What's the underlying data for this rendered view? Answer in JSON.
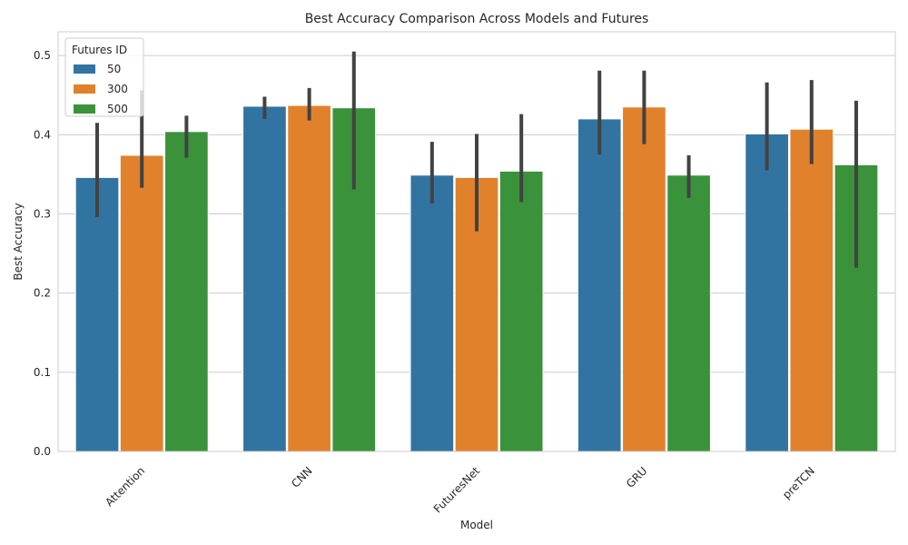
{
  "chart_data": {
    "type": "bar",
    "title": "Best Accuracy Comparison Across Models and Futures",
    "xlabel": "Model",
    "ylabel": "Best Accuracy",
    "ylim": [
      0,
      0.53
    ],
    "yticks": [
      "0.0",
      "0.1",
      "0.2",
      "0.3",
      "0.4",
      "0.5"
    ],
    "grid": true,
    "legend": {
      "title": "Futures ID",
      "position": "top-left"
    },
    "categories": [
      "Attention",
      "CNN",
      "FuturesNet",
      "GRU",
      "preTCN"
    ],
    "series": [
      {
        "name": "50",
        "color": "#3274a1",
        "values": [
          0.346,
          0.436,
          0.349,
          0.42,
          0.401
        ],
        "err_low": [
          0.296,
          0.42,
          0.313,
          0.375,
          0.355
        ],
        "err_high": [
          0.415,
          0.448,
          0.391,
          0.481,
          0.466
        ]
      },
      {
        "name": "300",
        "color": "#e1812c",
        "values": [
          0.374,
          0.437,
          0.346,
          0.435,
          0.407
        ],
        "err_low": [
          0.333,
          0.418,
          0.278,
          0.388,
          0.363
        ],
        "err_high": [
          0.456,
          0.459,
          0.401,
          0.481,
          0.469
        ]
      },
      {
        "name": "500",
        "color": "#3a923a",
        "values": [
          0.404,
          0.434,
          0.354,
          0.349,
          0.362
        ],
        "err_low": [
          0.371,
          0.331,
          0.315,
          0.32,
          0.232
        ],
        "err_high": [
          0.424,
          0.505,
          0.426,
          0.374,
          0.443
        ]
      }
    ]
  }
}
